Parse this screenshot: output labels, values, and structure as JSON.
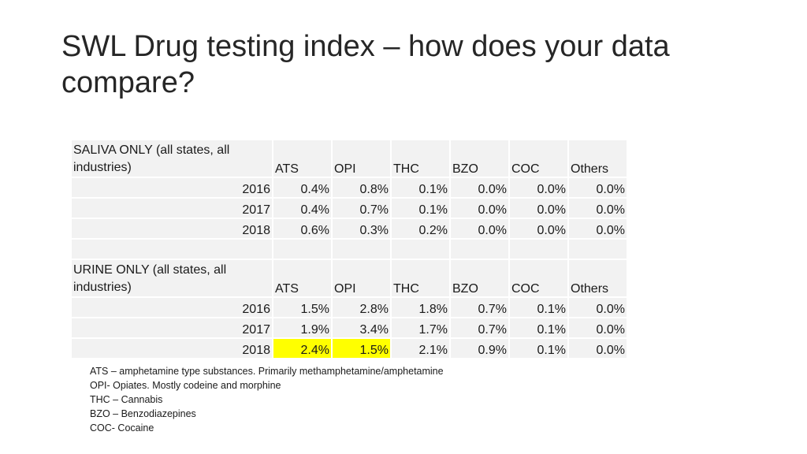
{
  "title": "SWL Drug testing index – how does your data compare?",
  "saliva": {
    "heading": "SALIVA ONLY (all states, all industries)",
    "columns": [
      "ATS",
      "OPI",
      "THC",
      "BZO",
      "COC",
      "Others"
    ],
    "rows": [
      {
        "year": "2016",
        "values": [
          "0.4%",
          "0.8%",
          "0.1%",
          "0.0%",
          "0.0%",
          "0.0%"
        ]
      },
      {
        "year": "2017",
        "values": [
          "0.4%",
          "0.7%",
          "0.1%",
          "0.0%",
          "0.0%",
          "0.0%"
        ]
      },
      {
        "year": "2018",
        "values": [
          "0.6%",
          "0.3%",
          "0.2%",
          "0.0%",
          "0.0%",
          "0.0%"
        ]
      }
    ]
  },
  "urine": {
    "heading": "URINE ONLY (all states, all industries)",
    "columns": [
      "ATS",
      "OPI",
      "THC",
      "BZO",
      "COC",
      "Others"
    ],
    "rows": [
      {
        "year": "2016",
        "values": [
          "1.5%",
          "2.8%",
          "1.8%",
          "0.7%",
          "0.1%",
          "0.0%"
        ]
      },
      {
        "year": "2017",
        "values": [
          "1.9%",
          "3.4%",
          "1.7%",
          "0.7%",
          "0.1%",
          "0.0%"
        ]
      },
      {
        "year": "2018",
        "values": [
          "2.4%",
          "1.5%",
          "2.1%",
          "0.9%",
          "0.1%",
          "0.0%"
        ]
      }
    ]
  },
  "highlight_color": "#ffff00",
  "notes": [
    "ATS – amphetamine type substances. Primarily methamphetamine/amphetamine",
    "OPI- Opiates. Mostly codeine and morphine",
    "THC – Cannabis",
    "BZO – Benzodiazepines",
    "COC- Cocaine"
  ]
}
